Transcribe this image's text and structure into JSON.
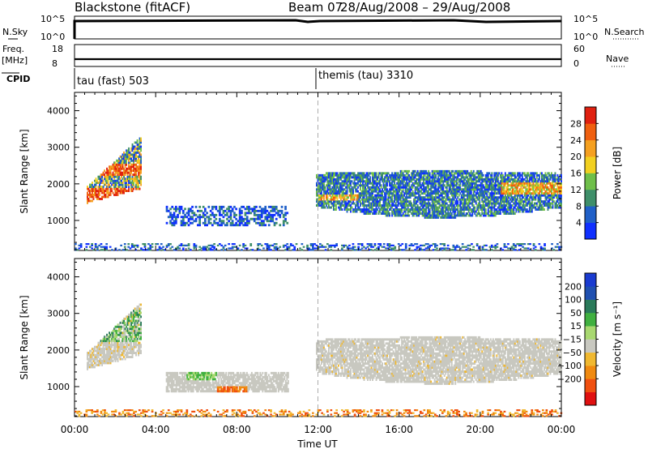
{
  "header": {
    "site": "Blackstone (fitACF)",
    "beam": "Beam 07",
    "dates": "28/Aug/2008 – 29/Aug/2008"
  },
  "strip_labels": {
    "nsky": "N.Sky",
    "freq": "Freq.",
    "freq_unit": "[MHz]",
    "cpid": "CPID",
    "nsearch": "N.Search",
    "nave": "Nave",
    "sky_tick_top": "10^5",
    "sky_tick_bottom": "10^0",
    "freq_tick_top": "18",
    "freq_tick_bottom": "8",
    "nave_tick_top": "60",
    "nave_tick_bottom": "0"
  },
  "cpid": [
    {
      "label": "tau (fast) 503"
    },
    {
      "label": "themis (tau) 3310"
    }
  ],
  "colors": {
    "power": [
      "#1030ff",
      "#2060c8",
      "#3f8f6a",
      "#6fbf4a",
      "#f2d020",
      "#f5a020",
      "#f06010",
      "#e02010"
    ],
    "velocity": [
      "#e01010",
      "#f05010",
      "#f08a10",
      "#f0b830",
      "#c8c8c0",
      "#a8d870",
      "#40b040",
      "#2a7a5a",
      "#2050b0",
      "#1a3bd0"
    ],
    "gray": "#c8c8c0"
  },
  "chart_data": [
    {
      "type": "heatmap",
      "panel": "power",
      "title": "",
      "xlabel": "",
      "ylabel": "Slant Range [km]",
      "x_ticks": [
        "00:00",
        "04:00",
        "08:00",
        "12:00",
        "16:00",
        "20:00",
        "00:00"
      ],
      "xlim_hours": [
        0,
        24
      ],
      "ylim": [
        180,
        4500
      ],
      "y_ticks": [
        1000,
        2000,
        3000,
        4000
      ],
      "colorbar": {
        "label": "Power [dB]",
        "ticks": [
          "4",
          "8",
          "12",
          "16",
          "20",
          "24",
          "28"
        ],
        "range": [
          0,
          32
        ]
      },
      "echo_regions": [
        {
          "t": [
            0.6,
            3.3
          ],
          "r": [
            1400,
            3300
          ],
          "level": "strong"
        },
        {
          "t": [
            4.5,
            10.5
          ],
          "r": [
            850,
            1350
          ],
          "level": "weak"
        },
        {
          "t": [
            11.9,
            24.0
          ],
          "r": [
            1000,
            2500
          ],
          "level": "mixed"
        },
        {
          "t": [
            0.0,
            24.0
          ],
          "r": [
            180,
            350
          ],
          "level": "weak"
        }
      ]
    },
    {
      "type": "heatmap",
      "panel": "velocity",
      "title": "",
      "xlabel": "Time UT",
      "ylabel": "Slant Range [km]",
      "x_ticks": [
        "00:00",
        "04:00",
        "08:00",
        "12:00",
        "16:00",
        "20:00",
        "00:00"
      ],
      "xlim_hours": [
        0,
        24
      ],
      "ylim": [
        180,
        4500
      ],
      "y_ticks": [
        1000,
        2000,
        3000,
        4000
      ],
      "colorbar": {
        "label": "Velocity [m s⁻¹]",
        "ticks": [
          "200",
          "100",
          "50",
          "15",
          "−15",
          "−50",
          "−100",
          "−200"
        ],
        "range": [
          -250,
          250
        ]
      },
      "echo_regions": [
        {
          "t": [
            0.6,
            3.3
          ],
          "r": [
            1400,
            3300
          ],
          "level": "ground+positive"
        },
        {
          "t": [
            4.5,
            10.5
          ],
          "r": [
            850,
            1350
          ],
          "level": "mixed"
        },
        {
          "t": [
            11.9,
            24.0
          ],
          "r": [
            1000,
            2500
          ],
          "level": "ground"
        },
        {
          "t": [
            0.0,
            24.0
          ],
          "r": [
            180,
            350
          ],
          "level": "negative"
        }
      ]
    }
  ]
}
